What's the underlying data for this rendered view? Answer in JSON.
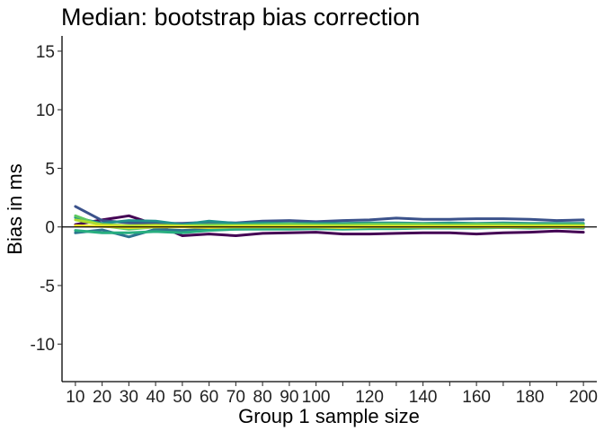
{
  "chart_data": {
    "type": "line",
    "title": "Median: bootstrap bias correction",
    "xlabel": "Group 1 sample size",
    "ylabel": "Bias in ms",
    "xlim": [
      5,
      205
    ],
    "ylim": [
      -13.2,
      16.3
    ],
    "x_ticks": [
      10,
      20,
      30,
      40,
      50,
      60,
      70,
      80,
      90,
      100,
      110,
      120,
      130,
      140,
      150,
      160,
      170,
      180,
      190,
      200
    ],
    "x_tick_labels": [
      "10",
      "20",
      "30",
      "40",
      "50",
      "60",
      "70",
      "80",
      "90",
      "100",
      "",
      "120",
      "",
      "140",
      "",
      "160",
      "",
      "180",
      "",
      "200"
    ],
    "y_ticks": [
      -10,
      -5,
      0,
      5,
      10,
      15
    ],
    "y_tick_labels": [
      "-10",
      "-5",
      "0",
      "5",
      "10",
      "15"
    ],
    "reference_line_y": 0,
    "grid": false,
    "legend": "none",
    "x": [
      10,
      20,
      30,
      40,
      50,
      60,
      70,
      80,
      90,
      100,
      110,
      120,
      130,
      140,
      150,
      160,
      170,
      180,
      190,
      200
    ],
    "series": [
      {
        "color": "#440154",
        "values": [
          0.2,
          0.6,
          0.95,
          0.2,
          -0.75,
          -0.6,
          -0.75,
          -0.55,
          -0.5,
          -0.45,
          -0.6,
          -0.6,
          -0.55,
          -0.5,
          -0.5,
          -0.6,
          -0.5,
          -0.45,
          -0.35,
          -0.45
        ]
      },
      {
        "color": "#3b528b",
        "values": [
          1.75,
          0.55,
          0.35,
          0.3,
          0.3,
          0.4,
          0.35,
          0.5,
          0.55,
          0.45,
          0.55,
          0.6,
          0.75,
          0.65,
          0.65,
          0.7,
          0.7,
          0.65,
          0.55,
          0.6
        ]
      },
      {
        "color": "#2c728e",
        "values": [
          -0.5,
          -0.25,
          -0.85,
          -0.2,
          -0.3,
          -0.2,
          -0.2,
          -0.15,
          -0.1,
          -0.1,
          -0.1,
          -0.05,
          -0.1,
          -0.05,
          -0.05,
          -0.05,
          0.0,
          -0.05,
          -0.05,
          -0.1
        ]
      },
      {
        "color": "#21918c",
        "values": [
          0.8,
          0.3,
          0.55,
          0.5,
          0.2,
          0.5,
          0.3,
          0.35,
          0.3,
          0.3,
          0.3,
          0.35,
          0.35,
          0.3,
          0.35,
          0.3,
          0.35,
          0.3,
          0.3,
          0.3
        ]
      },
      {
        "color": "#28ae80",
        "values": [
          -0.3,
          -0.5,
          -0.5,
          -0.4,
          -0.5,
          -0.3,
          -0.2,
          -0.2,
          -0.2,
          -0.15,
          -0.2,
          -0.15,
          -0.15,
          -0.1,
          -0.1,
          -0.1,
          -0.05,
          -0.1,
          -0.05,
          -0.05
        ]
      },
      {
        "color": "#5ec962",
        "values": [
          0.95,
          0.1,
          -0.2,
          0.0,
          0.1,
          0.2,
          0.15,
          0.2,
          0.25,
          0.2,
          0.2,
          0.25,
          0.25,
          0.25,
          0.2,
          0.25,
          0.25,
          0.2,
          0.2,
          0.2
        ]
      },
      {
        "color": "#addc30",
        "values": [
          0.6,
          0.2,
          0.1,
          0.15,
          0.1,
          0.05,
          0.1,
          0.1,
          0.1,
          0.1,
          0.1,
          0.1,
          0.1,
          0.1,
          0.1,
          0.1,
          0.1,
          0.1,
          0.1,
          0.1
        ]
      },
      {
        "color": "#fde725",
        "values": [
          0.1,
          0.05,
          -0.05,
          0.0,
          0.0,
          -0.05,
          0.0,
          0.0,
          0.0,
          0.0,
          -0.05,
          0.0,
          0.0,
          0.0,
          0.0,
          0.0,
          0.0,
          0.0,
          0.0,
          0.0
        ]
      }
    ]
  }
}
